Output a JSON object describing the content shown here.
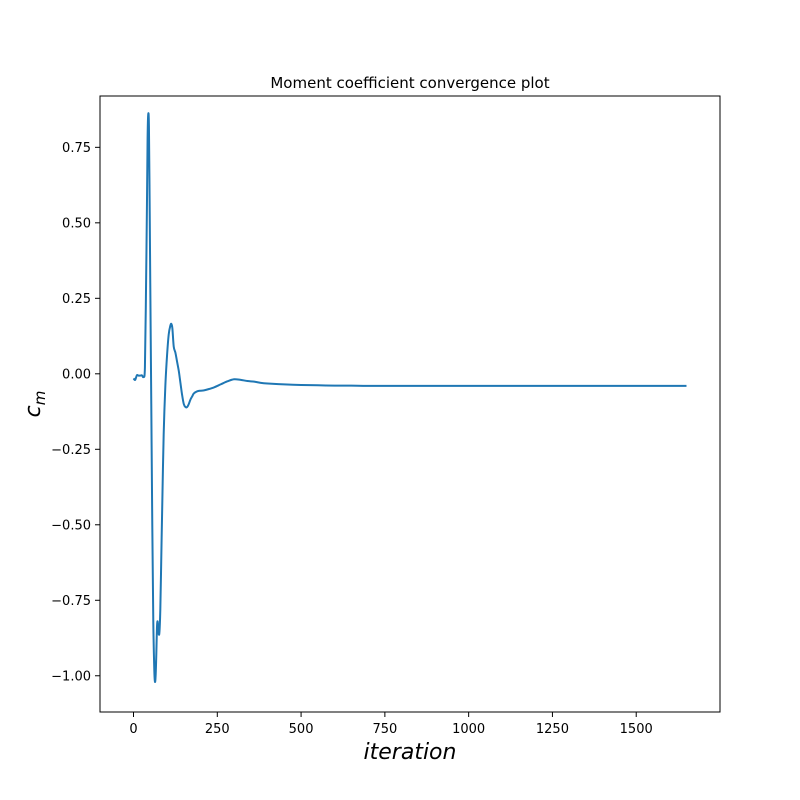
{
  "chart_data": {
    "type": "line",
    "title": "Moment coefficient convergence plot",
    "xlabel": "iteration",
    "ylabel": "c",
    "ylabel_sub": "m",
    "xlim": [
      -100,
      1750
    ],
    "ylim": [
      -1.12,
      0.92
    ],
    "xticks": [
      0,
      250,
      500,
      750,
      1000,
      1250,
      1500
    ],
    "xtick_labels": [
      "0",
      "250",
      "500",
      "750",
      "1000",
      "1250",
      "1500"
    ],
    "yticks": [
      0.75,
      0.5,
      0.25,
      0.0,
      -0.25,
      -0.5,
      -0.75,
      -1.0
    ],
    "ytick_labels": [
      "0.75",
      "0.50",
      "0.25",
      "0.00",
      "−0.25",
      "−0.50",
      "−0.75",
      "−1.00"
    ],
    "grid": false,
    "series": [
      {
        "color": "#1f77b4",
        "x": [
          0,
          5,
          10,
          15,
          20,
          25,
          30,
          34,
          37,
          40,
          42,
          44,
          46,
          48,
          50,
          53,
          56,
          59,
          62,
          64,
          66,
          68,
          70,
          72,
          74,
          77,
          80,
          83,
          86,
          90,
          95,
          100,
          105,
          110,
          113,
          116,
          120,
          125,
          130,
          135,
          140,
          145,
          150,
          155,
          160,
          165,
          170,
          175,
          180,
          190,
          200,
          210,
          220,
          240,
          260,
          280,
          300,
          320,
          340,
          360,
          380,
          400,
          450,
          500,
          550,
          600,
          650,
          700,
          800,
          900,
          1000,
          1100,
          1200,
          1300,
          1400,
          1500,
          1600,
          1650
        ],
        "y": [
          -0.015,
          -0.02,
          -0.005,
          -0.006,
          -0.006,
          -0.005,
          -0.01,
          0.02,
          0.25,
          0.55,
          0.78,
          0.86,
          0.82,
          0.58,
          0.3,
          -0.1,
          -0.5,
          -0.82,
          -0.98,
          -1.02,
          -1.0,
          -0.93,
          -0.84,
          -0.82,
          -0.85,
          -0.86,
          -0.78,
          -0.6,
          -0.42,
          -0.2,
          -0.04,
          0.06,
          0.13,
          0.16,
          0.165,
          0.15,
          0.09,
          0.07,
          0.04,
          0.01,
          -0.03,
          -0.07,
          -0.1,
          -0.11,
          -0.11,
          -0.1,
          -0.085,
          -0.075,
          -0.065,
          -0.058,
          -0.056,
          -0.055,
          -0.052,
          -0.045,
          -0.035,
          -0.025,
          -0.018,
          -0.02,
          -0.024,
          -0.026,
          -0.03,
          -0.032,
          -0.035,
          -0.037,
          -0.038,
          -0.039,
          -0.039,
          -0.04,
          -0.04,
          -0.04,
          -0.04,
          -0.04,
          -0.04,
          -0.04,
          -0.04,
          -0.04,
          -0.04,
          -0.04
        ]
      }
    ]
  }
}
